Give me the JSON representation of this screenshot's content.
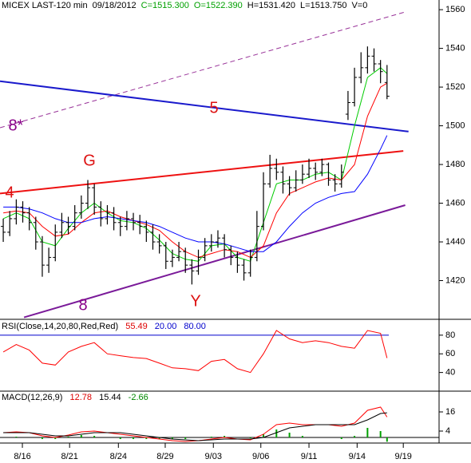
{
  "chart_data": [
    {
      "type": "ohlc",
      "header": [
        {
          "text": "MICEX LAST-120 min",
          "color": "#000000"
        },
        {
          "text": "09/18/2012",
          "color": "#000000"
        },
        {
          "text": "C=1515.300",
          "color": "#00a000"
        },
        {
          "text": "O=1522.390",
          "color": "#00a000"
        },
        {
          "text": "H=1531.420",
          "color": "#000000"
        },
        {
          "text": "L=1513.750",
          "color": "#000000"
        },
        {
          "text": "V=0",
          "color": "#000000"
        }
      ],
      "color": "#000000",
      "x": [
        0,
        1,
        2,
        3,
        4,
        5,
        6,
        7,
        8,
        9,
        10,
        11,
        12,
        13,
        14,
        15,
        16,
        17,
        18,
        19,
        20,
        21,
        22,
        23,
        24,
        25,
        26,
        27,
        28,
        29,
        30,
        31,
        32,
        33,
        34,
        35,
        36,
        37,
        38,
        39,
        40,
        41,
        42,
        43,
        44,
        45,
        46,
        47,
        48,
        49,
        50,
        51,
        52,
        53,
        54,
        55,
        56,
        57,
        58,
        59
      ],
      "open": [
        1448,
        1445,
        1452,
        1458,
        1455,
        1450,
        1440,
        1428,
        1432,
        1445,
        1450,
        1448,
        1455,
        1460,
        1468,
        1458,
        1452,
        1455,
        1450,
        1448,
        1452,
        1450,
        1448,
        1445,
        1440,
        1438,
        1430,
        1432,
        1435,
        1428,
        1425,
        1432,
        1438,
        1440,
        1442,
        1436,
        1432,
        1428,
        1424,
        1432,
        1448,
        1470,
        1478,
        1476,
        1470,
        1468,
        1472,
        1475,
        1478,
        1476,
        1480,
        1472,
        1470,
        1506,
        1512,
        1525,
        1530,
        1536,
        1532,
        1522.39
      ],
      "high": [
        1452,
        1456,
        1462,
        1461,
        1458,
        1453,
        1443,
        1437,
        1449,
        1455,
        1453,
        1459,
        1464,
        1472,
        1470,
        1461,
        1459,
        1458,
        1453,
        1456,
        1455,
        1454,
        1451,
        1449,
        1444,
        1440,
        1436,
        1440,
        1437,
        1431,
        1436,
        1442,
        1444,
        1446,
        1444,
        1438,
        1435,
        1431,
        1436,
        1456,
        1476,
        1485,
        1483,
        1479,
        1474,
        1477,
        1480,
        1483,
        1481,
        1483,
        1481,
        1475,
        1480,
        1518,
        1530,
        1538,
        1541,
        1540,
        1534,
        1531.42
      ],
      "low": [
        1440,
        1443,
        1449,
        1450,
        1446,
        1436,
        1422,
        1424,
        1430,
        1442,
        1444,
        1446,
        1452,
        1457,
        1454,
        1448,
        1449,
        1446,
        1443,
        1446,
        1446,
        1444,
        1440,
        1436,
        1434,
        1426,
        1427,
        1430,
        1424,
        1418,
        1423,
        1430,
        1435,
        1437,
        1432,
        1428,
        1424,
        1420,
        1422,
        1430,
        1446,
        1468,
        1472,
        1465,
        1464,
        1466,
        1470,
        1473,
        1472,
        1474,
        1469,
        1466,
        1468,
        1503,
        1510,
        1522,
        1527,
        1528,
        1522,
        1513.75
      ],
      "close": [
        1445,
        1452,
        1458,
        1455,
        1450,
        1440,
        1428,
        1432,
        1445,
        1450,
        1448,
        1455,
        1460,
        1468,
        1458,
        1452,
        1455,
        1450,
        1448,
        1452,
        1450,
        1448,
        1445,
        1440,
        1438,
        1430,
        1432,
        1435,
        1428,
        1425,
        1432,
        1438,
        1440,
        1442,
        1436,
        1432,
        1428,
        1424,
        1432,
        1448,
        1470,
        1478,
        1476,
        1470,
        1468,
        1472,
        1475,
        1478,
        1476,
        1480,
        1472,
        1470,
        1476,
        1512,
        1525,
        1530,
        1536,
        1532,
        1528,
        1515.3
      ],
      "series": [
        {
          "color": "#00cc00",
          "x": [
            0,
            2,
            4,
            6,
            8,
            10,
            12,
            14,
            16,
            18,
            20,
            22,
            24,
            26,
            28,
            30,
            32,
            34,
            36,
            38,
            40,
            42,
            44,
            46,
            48,
            50,
            52,
            54,
            56,
            58,
            59
          ],
          "values": [
            1452,
            1455,
            1452,
            1440,
            1438,
            1447,
            1455,
            1460,
            1455,
            1451,
            1450,
            1447,
            1441,
            1434,
            1431,
            1430,
            1438,
            1439,
            1432,
            1430,
            1450,
            1470,
            1472,
            1472,
            1475,
            1476,
            1472,
            1500,
            1525,
            1530,
            1527
          ]
        },
        {
          "color": "#ff0000",
          "x": [
            0,
            2,
            4,
            6,
            8,
            10,
            12,
            14,
            16,
            18,
            20,
            22,
            24,
            26,
            28,
            30,
            32,
            34,
            36,
            38,
            40,
            42,
            44,
            46,
            48,
            50,
            52,
            54,
            56,
            58,
            59
          ],
          "values": [
            1455,
            1456,
            1455,
            1448,
            1443,
            1444,
            1450,
            1455,
            1456,
            1453,
            1451,
            1449,
            1446,
            1440,
            1435,
            1432,
            1434,
            1436,
            1435,
            1432,
            1438,
            1455,
            1465,
            1468,
            1471,
            1473,
            1472,
            1480,
            1505,
            1520,
            1522
          ]
        },
        {
          "color": "#0000ff",
          "x": [
            0,
            2,
            4,
            6,
            8,
            10,
            12,
            14,
            16,
            18,
            20,
            22,
            24,
            26,
            28,
            30,
            32,
            34,
            36,
            38,
            40,
            42,
            44,
            46,
            48,
            50,
            52,
            54,
            56,
            58,
            59
          ],
          "values": [
            1458,
            1458,
            1457,
            1455,
            1452,
            1450,
            1450,
            1452,
            1453,
            1452,
            1451,
            1450,
            1448,
            1445,
            1442,
            1440,
            1440,
            1439,
            1437,
            1435,
            1435,
            1440,
            1448,
            1455,
            1460,
            1463,
            1465,
            1466,
            1475,
            1488,
            1495
          ]
        }
      ],
      "trendlines": [
        {
          "color": "#993399",
          "dashed": true,
          "x": [
            -0.5,
            62
          ],
          "y": [
            1499,
            1559
          ]
        },
        {
          "color": "#1a1acc",
          "dashed": false,
          "x": [
            -0.5,
            62.3
          ],
          "y": [
            1523,
            1497
          ]
        },
        {
          "color": "#ee1111",
          "dashed": false,
          "x": [
            -0.5,
            61.5
          ],
          "y": [
            1465,
            1487
          ]
        },
        {
          "color": "#7a1a99",
          "dashed": false,
          "x": [
            3.2,
            61.8
          ],
          "y": [
            1401,
            1459
          ]
        }
      ],
      "annotations": [
        {
          "text": "8*",
          "color": "#880088"
        },
        {
          "text": "5",
          "color": "#dd1111"
        },
        {
          "text": "G",
          "color": "#dd1111"
        },
        {
          "text": "4",
          "color": "#dd1111"
        },
        {
          "text": "8",
          "color": "#880088"
        },
        {
          "text": "Y",
          "color": "#dd1111"
        }
      ],
      "xlim": [
        -0.5,
        67
      ],
      "xticks": [
        {
          "value": 2.94,
          "label": "8/16"
        },
        {
          "value": 10.2,
          "label": "8/21"
        },
        {
          "value": 17.7,
          "label": "8/24"
        },
        {
          "value": 24.9,
          "label": "8/29"
        },
        {
          "value": 32.3,
          "label": "9/03"
        },
        {
          "value": 39.6,
          "label": "9/06"
        },
        {
          "value": 47,
          "label": "9/11"
        },
        {
          "value": 54.4,
          "label": "9/14"
        },
        {
          "value": 61.5,
          "label": "9/19"
        }
      ],
      "ylim": [
        1400,
        1565
      ],
      "yticks": [
        1420,
        1440,
        1460,
        1480,
        1500,
        1520,
        1540,
        1560
      ]
    },
    {
      "type": "line",
      "title": "RSI(Close,14,20,80,Red,Red)",
      "x": [
        0,
        2,
        4,
        6,
        8,
        10,
        12,
        14,
        16,
        18,
        20,
        22,
        24,
        26,
        28,
        30,
        32,
        34,
        36,
        38,
        40,
        42,
        44,
        46,
        48,
        50,
        52,
        54,
        56,
        58,
        59
      ],
      "series": [
        {
          "color": "#ff0000",
          "values": [
            62,
            70,
            64,
            50,
            48,
            62,
            68,
            72,
            60,
            58,
            56,
            55,
            50,
            45,
            44,
            42,
            52,
            54,
            44,
            40,
            60,
            85,
            76,
            72,
            74,
            72,
            68,
            66,
            85,
            82,
            55.49
          ]
        }
      ],
      "thresholds": [
        {
          "value": 20,
          "label": "20.00",
          "color": "#0000cc",
          "dashed": true
        },
        {
          "value": 80,
          "label": "80.00",
          "color": "#0000cc",
          "dashed": false
        }
      ],
      "ylim": [
        20,
        97
      ],
      "yticks": [
        40,
        60,
        80
      ]
    },
    {
      "type": "macd",
      "title": "MACD(12,26,9)",
      "x": [
        0,
        2,
        4,
        6,
        8,
        10,
        12,
        14,
        16,
        18,
        20,
        22,
        24,
        26,
        28,
        30,
        32,
        34,
        36,
        38,
        40,
        42,
        44,
        46,
        48,
        50,
        52,
        54,
        56,
        58,
        59
      ],
      "series": [
        {
          "color": "#ff0000",
          "values": [
            3,
            3.5,
            3,
            1,
            0,
            1.5,
            3.5,
            4,
            3,
            2,
            1,
            0,
            -1,
            -2,
            -2.5,
            -2,
            -1,
            0,
            -1,
            -1.5,
            2,
            8,
            9,
            8,
            8,
            8,
            7,
            9,
            17,
            19,
            12.78
          ]
        },
        {
          "color": "#000000",
          "values": [
            3,
            3,
            3,
            2,
            1,
            1,
            2,
            3,
            3,
            3,
            2,
            1,
            0,
            -1,
            -1.5,
            -2,
            -1.5,
            -1,
            -1,
            -1,
            0,
            3,
            6,
            7,
            8,
            8,
            8,
            8,
            11,
            15,
            15.44
          ]
        }
      ],
      "histogram": {
        "color": "#00a000",
        "values": [
          0,
          0.5,
          0,
          -1,
          -1,
          0.5,
          1.5,
          1,
          0,
          -1,
          -1,
          -1,
          -1,
          -1,
          -1,
          0,
          0.5,
          1,
          0,
          -0.5,
          2,
          5,
          3,
          1,
          0,
          0,
          -1,
          1,
          6,
          4,
          -2.66
        ]
      },
      "ylim": [
        -3.5,
        29
      ],
      "yticks": [
        4,
        16
      ]
    }
  ]
}
